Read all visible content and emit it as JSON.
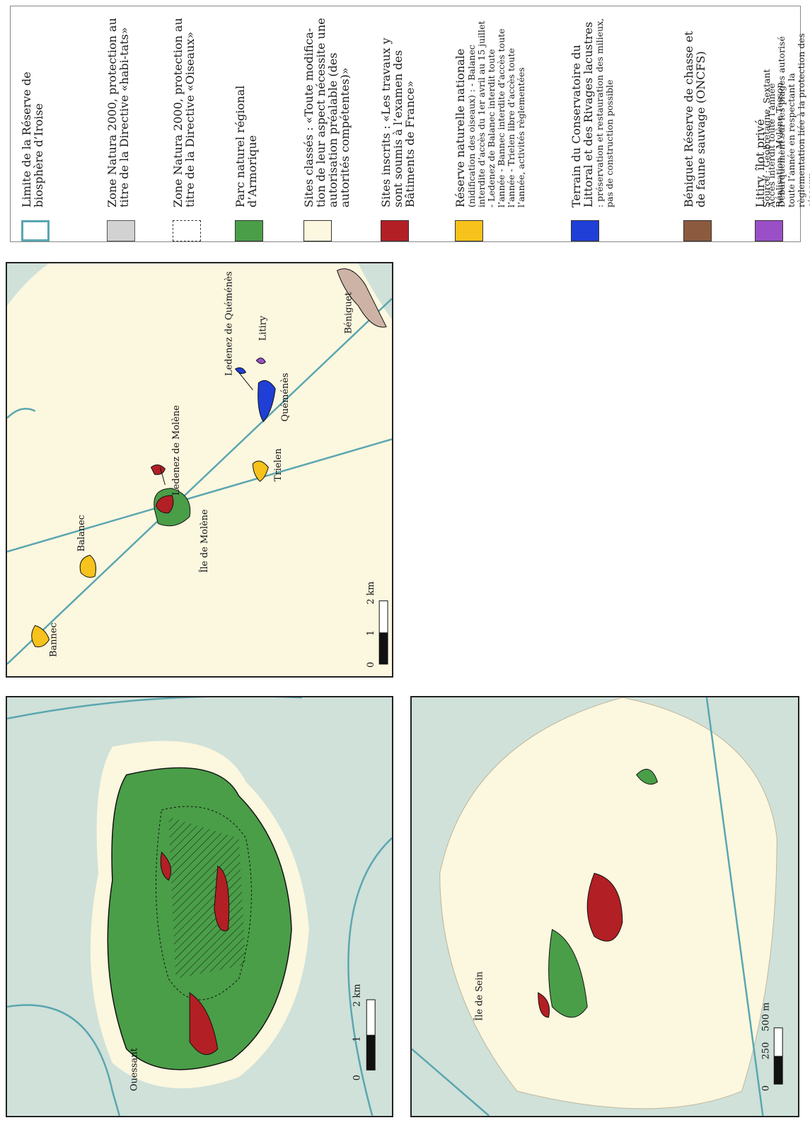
{
  "legend": {
    "items": [
      {
        "title": "Limite de la Réserve de biosphère d’Iroise",
        "detail": "",
        "color": "#ffffff",
        "border": "#5aa6b0",
        "style": "outline"
      },
      {
        "title": "Zone Natura 2000, protection au titre de la Directive «habi-tats»",
        "detail": "",
        "color": "#d2d2d2",
        "border": "#555555",
        "style": "solid"
      },
      {
        "title": "Zone Natura 2000, protection au titre de la Directive «Oiseaux»",
        "detail": "",
        "color": "#ffffff",
        "border": "#333333",
        "style": "dashed"
      },
      {
        "title": "Parc naturel régional d’Armorique",
        "detail": "",
        "color": "#4a9e48",
        "border": "#333333",
        "style": "solid"
      },
      {
        "title": "Sites classés : «Toute modifica-tion de leur aspect nécessite une autorisation préalable (des autorités compétentes)»",
        "detail": "",
        "color": "#fcf7df",
        "border": "#333333",
        "style": "solid"
      },
      {
        "title": "Sites inscrits : «Les travaux y sont soumis à l’examen des Bâtiments de France»",
        "detail": "",
        "color": "#b21f24",
        "border": "#333333",
        "style": "solid"
      },
      {
        "title": "Réserve naturelle nationale",
        "detail": "(nidification des oiseaux) : - Balanec interdite d’accès du 1er avril au 15 juillet - Ledenez de Balanec interdit toute l’année - Bannec interdite d’accès toute l’année - Trielen libre d’accès toute l’année, activités règlementées",
        "color": "#f6c21b",
        "border": "#333333",
        "style": "dots"
      },
      {
        "title": "Terrain du Conservatoire du Littoral et des Rivages lacustres",
        "detail": ": préservation et restauration des milieux, pas de construction possible",
        "color": "#1f3fd6",
        "border": "#333333",
        "style": "dots"
      },
      {
        "title": "Béniguet Réserve de chasse et de faune sauvage (ONCFS)",
        "detail": "",
        "color": "#8c5a3e",
        "border": "#333333",
        "style": "solid"
      },
      {
        "title": "Litiry, îlot privé",
        "detail": "Accès interdit toute l’année Débarquement sur les plages autorisé toute l’année en respectant la règlementation liée à la protection des oiseaux",
        "color": "#9b4fc7",
        "border": "#333333",
        "style": "solid"
      }
    ],
    "source": "Source : Géobretagne, Sextant",
    "author": "Réalisation : Mylène Tesson"
  },
  "maps": {
    "molene": {
      "labels": [
        "Bannec",
        "Balanec",
        "Île de Molène",
        "Ledenez de Molène",
        "Trielen",
        "Ledenez de Quéménès",
        "Quéménès",
        "Litiry",
        "Béniguet"
      ],
      "scale": {
        "ticks": [
          "0",
          "1",
          "2 km"
        ]
      }
    },
    "ouessant": {
      "labels": [
        "Ouessant"
      ],
      "scale": {
        "ticks": [
          "0",
          "1",
          "2 km"
        ]
      }
    },
    "sein": {
      "labels": [
        "Île de Sein"
      ],
      "scale": {
        "ticks": [
          "0",
          "250",
          "500 m"
        ]
      }
    }
  },
  "colors": {
    "sea": "#cfe1d9",
    "land_classified": "#fcf7df",
    "boundary": "#5aa6b0",
    "park": "#4a9e48",
    "inscrit": "#b21f24",
    "reserve": "#f6c21b",
    "conservatoire": "#1f3fd6",
    "beniguet": "#cdb3a6"
  }
}
